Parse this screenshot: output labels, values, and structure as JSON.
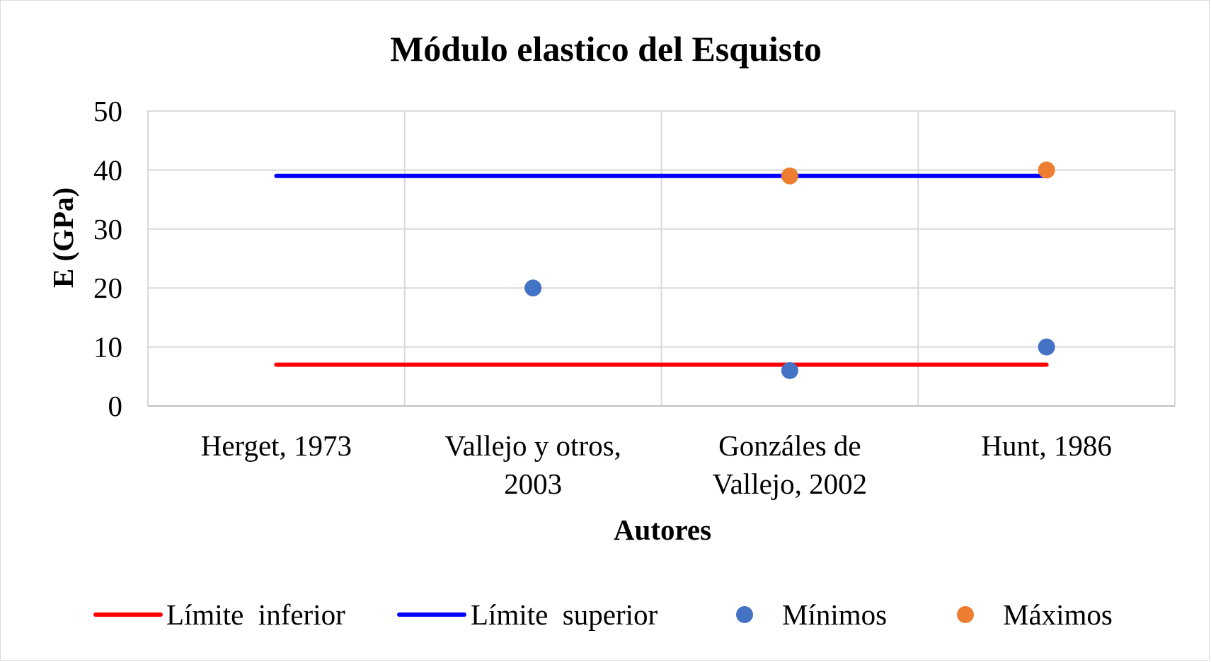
{
  "chart_data": {
    "type": "line",
    "title": "Módulo elastico del Esquisto",
    "xlabel": "Autores",
    "ylabel": "E (GPa)",
    "ylim": [
      0,
      50
    ],
    "yticks": [
      0,
      10,
      20,
      30,
      40,
      50
    ],
    "grid": true,
    "legend_position": "bottom",
    "categories": [
      [
        "Herget, 1973"
      ],
      [
        "Vallejo y otros,",
        "2003"
      ],
      [
        "Gonzáles de",
        "Vallejo, 2002"
      ],
      [
        "Hunt, 1986"
      ]
    ],
    "series": [
      {
        "name": "Límite  inferior",
        "kind": "line",
        "color": "#ff0000",
        "values": [
          7,
          7,
          7,
          7
        ]
      },
      {
        "name": "Límite  superior",
        "kind": "line",
        "color": "#0000ff",
        "values": [
          39,
          39,
          39,
          39
        ]
      },
      {
        "name": "Mínimos",
        "kind": "marker",
        "color": "#4472c4",
        "values": [
          null,
          20,
          6,
          10
        ]
      },
      {
        "name": "Máximos",
        "kind": "marker",
        "color": "#ed7d31",
        "values": [
          null,
          null,
          39,
          40
        ]
      }
    ]
  }
}
